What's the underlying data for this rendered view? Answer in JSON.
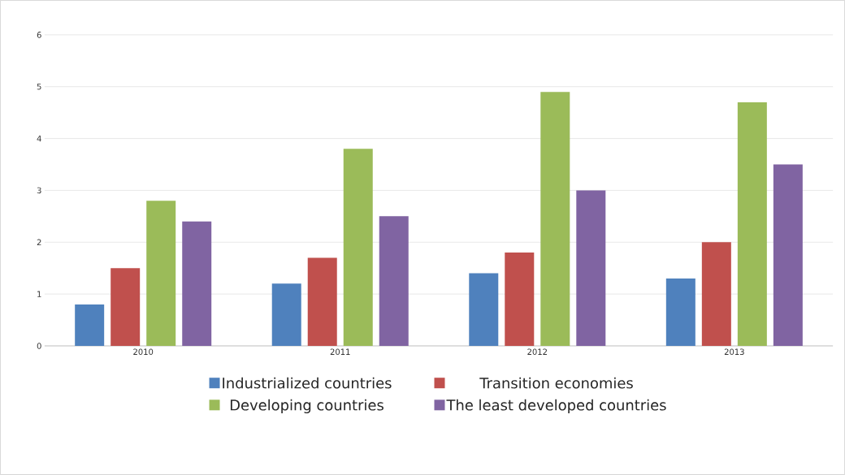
{
  "chart_data": {
    "type": "bar",
    "categories": [
      "2010",
      "2011",
      "2012",
      "2013"
    ],
    "series": [
      {
        "name": "Industrialized countries",
        "color": "#4f81bd",
        "values": [
          0.8,
          1.2,
          1.4,
          1.3
        ]
      },
      {
        "name": "Transition economies",
        "color": "#c0504d",
        "values": [
          1.5,
          1.7,
          1.8,
          2.0
        ]
      },
      {
        "name": "Developing countries",
        "color": "#9bbb59",
        "values": [
          2.8,
          3.8,
          4.9,
          4.7
        ]
      },
      {
        "name": "The least developed countries",
        "color": "#8064a2",
        "values": [
          2.4,
          2.5,
          3.0,
          3.5
        ]
      }
    ],
    "ylim": [
      0,
      6
    ],
    "yticks": [
      0,
      1,
      2,
      3,
      4,
      5,
      6
    ],
    "grid": "y",
    "legend": "bottom"
  }
}
